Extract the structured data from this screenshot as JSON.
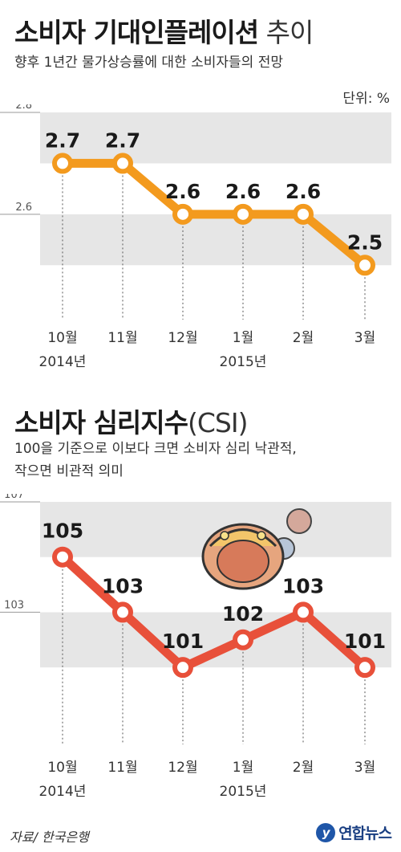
{
  "chart1": {
    "title_main": "소비자 기대인플레이션",
    "title_light": " 추이",
    "subtitle": "향후 1년간 물가상승률에 대한 소비자들의 전망",
    "unit": "단위: %"
  },
  "chart2": {
    "title_main": "소비자 심리지수",
    "title_light": "(CSI)",
    "subtitle_line1": "100을 기준으로 이보다 크면 소비자 심리 낙관적,",
    "subtitle_line2": "작으면 비관적 의미"
  },
  "footer": {
    "source": "자료/ 한국은행",
    "logo_text": "연합뉴스"
  },
  "chart_data": [
    {
      "type": "line",
      "title": "소비자 기대인플레이션 추이",
      "subtitle": "향후 1년간 물가상승률에 대한 소비자들의 전망",
      "unit": "단위: %",
      "categories": [
        "10월",
        "11월",
        "12월",
        "1월",
        "2월",
        "3월"
      ],
      "year_labels": [
        {
          "label": "2014년",
          "under": "10월"
        },
        {
          "label": "2015년",
          "under": "1월"
        }
      ],
      "values": [
        2.7,
        2.7,
        2.6,
        2.6,
        2.6,
        2.5
      ],
      "data_labels": [
        "2.7",
        "2.7",
        "2.6",
        "2.6",
        "2.6",
        "2.5"
      ],
      "ylim": [
        2.45,
        2.8
      ],
      "yticks": [
        2.8,
        2.6
      ],
      "bands": [
        [
          2.7,
          2.8
        ],
        [
          2.5,
          2.6
        ]
      ],
      "color": "#f39a1e"
    },
    {
      "type": "line",
      "title": "소비자 심리지수(CSI)",
      "categories": [
        "10월",
        "11월",
        "12월",
        "1월",
        "2월",
        "3월"
      ],
      "year_labels": [
        {
          "label": "2014년",
          "under": "10월"
        },
        {
          "label": "2015년",
          "under": "1월"
        }
      ],
      "values": [
        105,
        103,
        101,
        102,
        103,
        101
      ],
      "data_labels": [
        "105",
        "103",
        "101",
        "102",
        "103",
        "101"
      ],
      "ylim": [
        99.2,
        107
      ],
      "yticks": [
        107,
        103
      ],
      "bands": [
        [
          105,
          107
        ],
        [
          101,
          103
        ]
      ],
      "color": "#e8503a"
    }
  ]
}
